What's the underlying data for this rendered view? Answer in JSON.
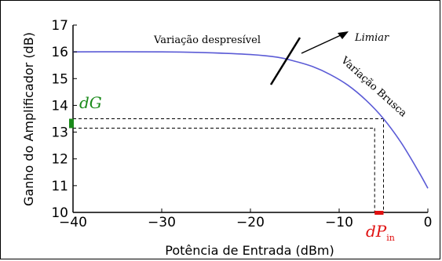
{
  "chart_data": {
    "type": "line",
    "x_ticks": [
      "−40",
      "−30",
      "−20",
      "−10",
      "0"
    ],
    "y_ticks": [
      "10",
      "11",
      "12",
      "13",
      "14",
      "15",
      "16",
      "17"
    ],
    "xlabel": "Potência de Entrada (dBm)",
    "ylabel": "Ganho do Amplificador (dB)",
    "xlim": [
      -40,
      0
    ],
    "ylim": [
      10,
      17
    ],
    "grid": false,
    "series": [
      {
        "color": "#5b5bd6",
        "x": [
          -40,
          -30,
          -25,
          -20,
          -17,
          -15,
          -13,
          -11,
          -9,
          -7,
          -5,
          -3,
          -1,
          0
        ],
        "y": [
          16.0,
          16.0,
          15.97,
          15.9,
          15.8,
          15.65,
          15.45,
          15.15,
          14.75,
          14.2,
          13.5,
          12.6,
          11.5,
          10.9
        ]
      }
    ],
    "annotations": {
      "negligible": "Variação despresível",
      "threshold": "Limiar",
      "abrupt": "Variação Brusca",
      "dG": "dG",
      "dP": "dP",
      "dP_sub": "in"
    },
    "reference_lines": {
      "y_levels": [
        13.5,
        13.15
      ],
      "x_levels": [
        -6,
        -5
      ]
    },
    "colors": {
      "curve": "#5b5bd6",
      "dG": "#1a8a1a",
      "dP": "#e01010"
    }
  }
}
